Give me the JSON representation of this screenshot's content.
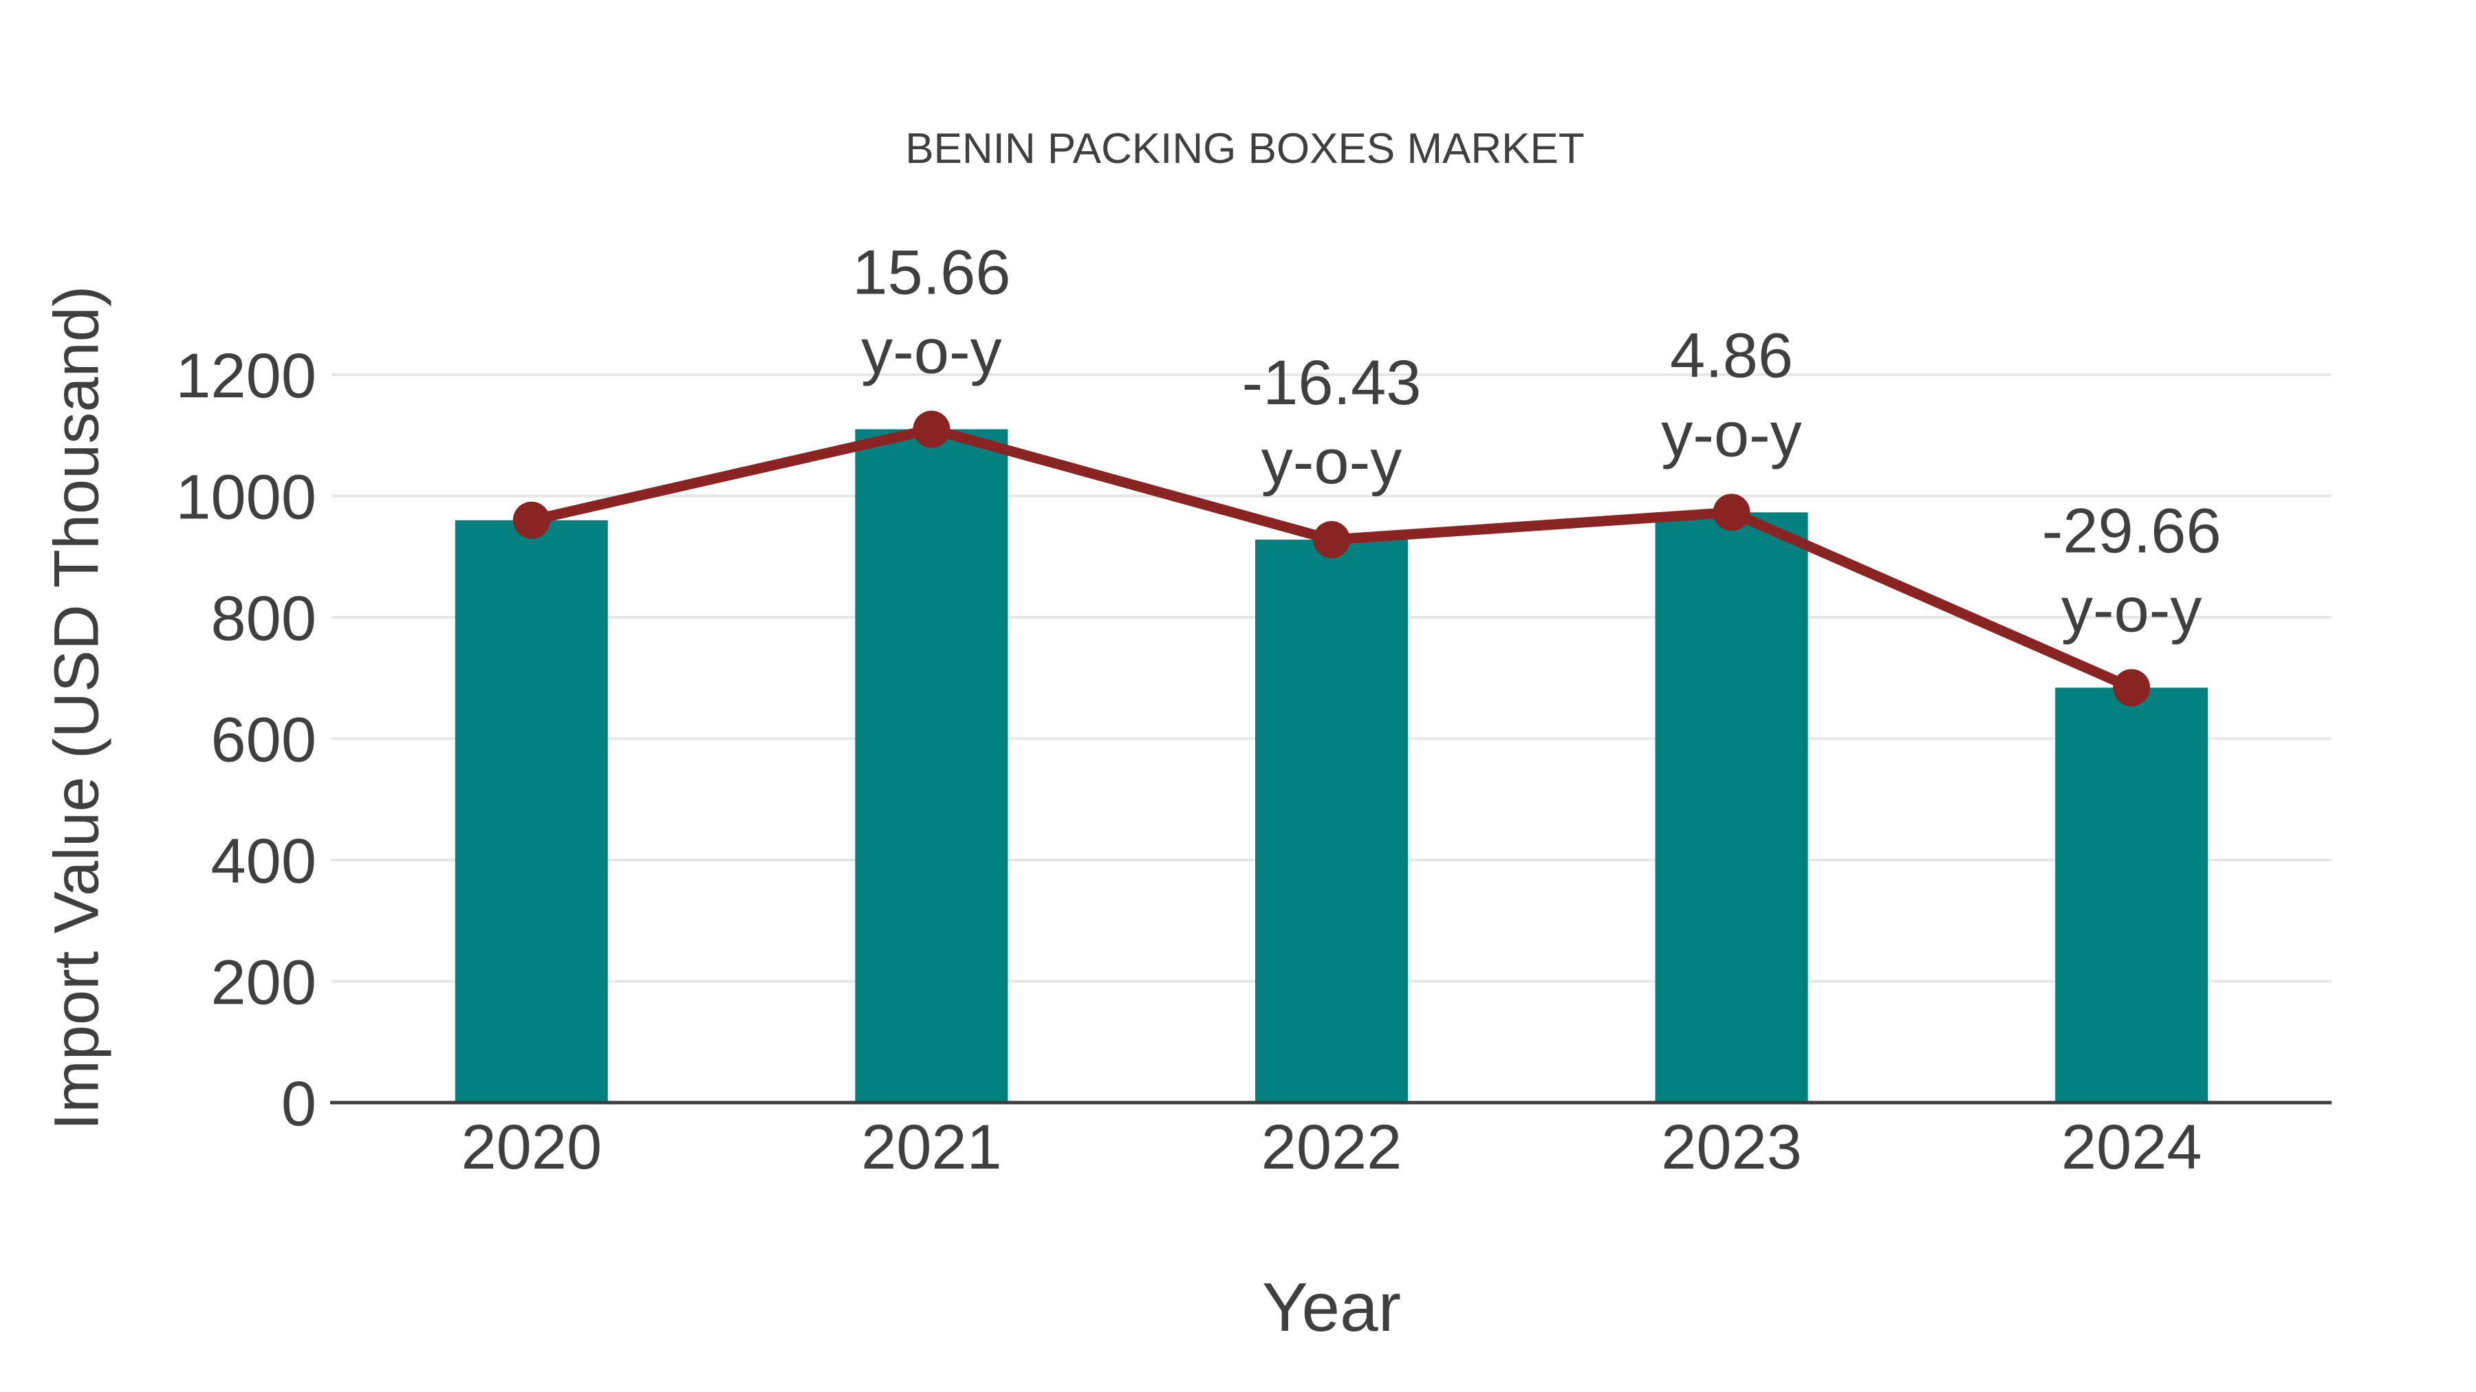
{
  "chart_data": {
    "type": "bar",
    "title": "BENIN PACKING BOXES MARKET",
    "xlabel": "Year",
    "ylabel": "Import Value (USD Thousand)",
    "categories": [
      "2020",
      "2021",
      "2022",
      "2023",
      "2024"
    ],
    "series": [
      {
        "name": "import-value-bars",
        "type": "bar",
        "values": [
          960,
          1110,
          928,
          973,
          684
        ]
      },
      {
        "name": "yoy-trend-line",
        "type": "line",
        "values": [
          960,
          1110,
          928,
          973,
          684
        ]
      }
    ],
    "annotations": [
      {
        "category": "2021",
        "line1": "15.66",
        "line2": "y-o-y"
      },
      {
        "category": "2022",
        "line1": "-16.43",
        "line2": "y-o-y"
      },
      {
        "category": "2023",
        "line1": "4.86",
        "line2": "y-o-y"
      },
      {
        "category": "2024",
        "line1": "-29.66",
        "line2": "y-o-y"
      }
    ],
    "y_ticks": [
      0,
      200,
      400,
      600,
      800,
      1000,
      1200
    ],
    "ylim": [
      0,
      1200
    ],
    "grid": true,
    "legend": "none",
    "colors": {
      "bar": "#038080",
      "line": "#8a2423",
      "marker": "#8a2423",
      "text": "#3f3f3f",
      "grid": "#e7e7e7",
      "axis": "#3c3c3c",
      "background": "#ffffff"
    }
  }
}
